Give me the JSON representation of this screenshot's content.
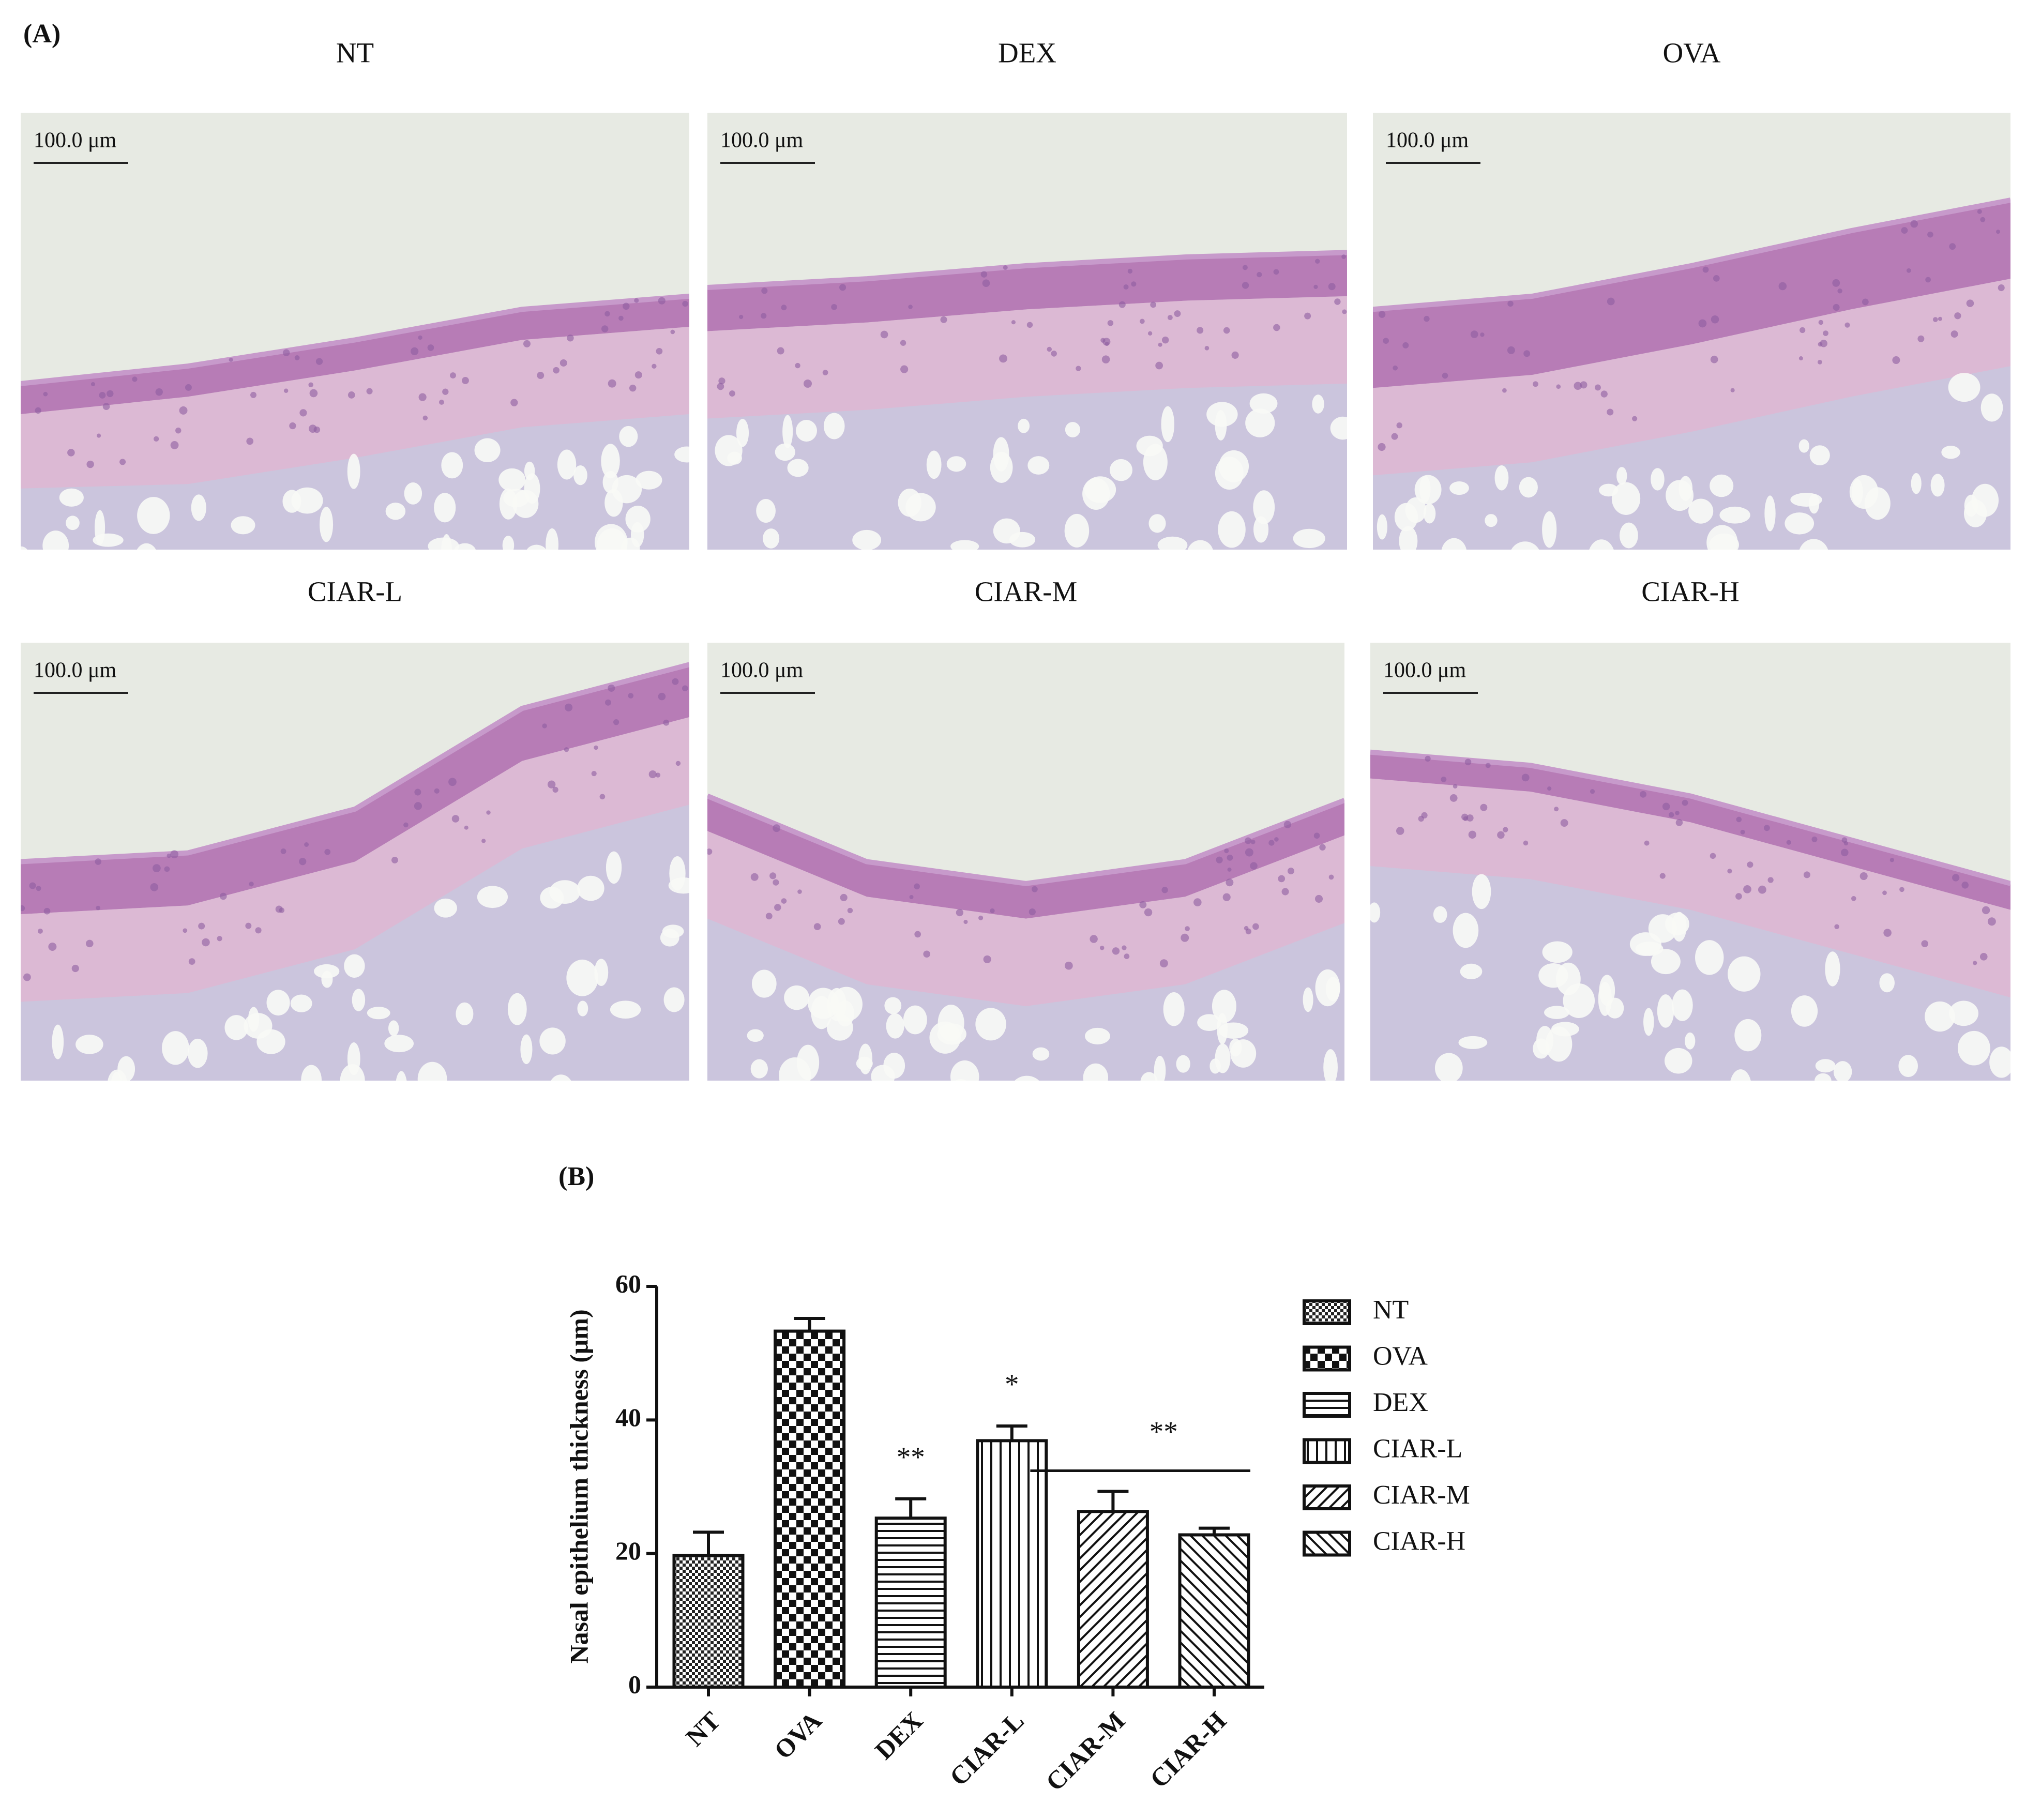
{
  "figure_a": {
    "label": "(A)",
    "panels": [
      {
        "title": "NT",
        "scale_label": "100.0 μm"
      },
      {
        "title": "DEX",
        "scale_label": "100.0 μm"
      },
      {
        "title": "OVA",
        "scale_label": "100.0 μm"
      },
      {
        "title": "CIAR-L",
        "scale_label": "100.0 μm"
      },
      {
        "title": "CIAR-M",
        "scale_label": "100.0 μm"
      },
      {
        "title": "CIAR-H",
        "scale_label": "100.0 μm"
      }
    ]
  },
  "chart_data": {
    "type": "bar",
    "panel_label": "(B)",
    "y_label": "Nasal epithelium thickness (μm)",
    "categories": [
      "NT",
      "OVA",
      "DEX",
      "CIAR-L",
      "CIAR-M",
      "CIAR-H"
    ],
    "values": [
      19.7,
      53.3,
      25.3,
      36.9,
      26.3,
      22.8
    ],
    "errors": [
      3.5,
      1.9,
      2.9,
      2.2,
      3.0,
      1.0
    ],
    "ylim": [
      0,
      60
    ],
    "yticks": [
      0,
      20,
      40,
      60
    ],
    "annotations": [
      {
        "text": "**",
        "categories": [
          "DEX"
        ]
      },
      {
        "text": "*",
        "categories": [
          "CIAR-L"
        ]
      },
      {
        "text": "**",
        "categories": [
          "CIAR-M",
          "CIAR-H"
        ]
      }
    ]
  }
}
